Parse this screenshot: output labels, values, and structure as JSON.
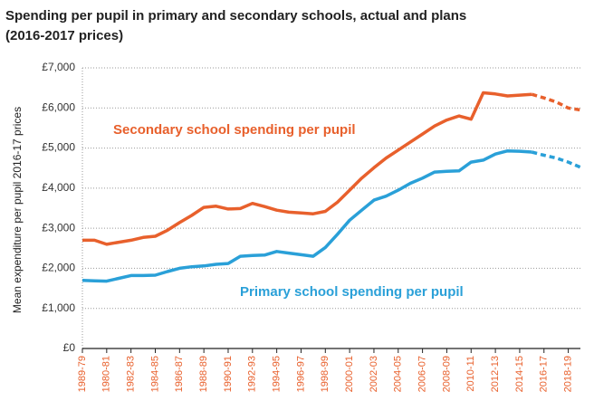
{
  "chart_data": {
    "type": "line",
    "title": "Spending per pupil in primary and secondary schools, actual and plans",
    "subtitle": "(2016-2017 prices)",
    "y_label": "Mean expenditure per pupil 2016-17 prices",
    "categories": [
      "1989-79",
      null,
      "1980-81",
      null,
      "1982-83",
      null,
      "1984-85",
      null,
      "1986-87",
      null,
      "1988-89",
      null,
      "1990-91",
      null,
      "1992-93",
      null,
      "1994-95",
      null,
      "1996-97",
      null,
      "1998-99",
      null,
      "2000-01",
      null,
      "2002-03",
      null,
      "2004-05",
      null,
      "2006-07",
      null,
      "2008-09",
      null,
      "2010-11",
      null,
      "2012-13",
      null,
      "2014-15",
      null,
      "2016-17",
      null,
      "2018-19",
      null
    ],
    "series": [
      {
        "name": "Secondary school spending per pupil",
        "color": "#e8602c",
        "values": [
          2700,
          2700,
          2600,
          2650,
          2700,
          2770,
          2800,
          2950,
          3140,
          3320,
          3520,
          3550,
          3480,
          3490,
          3620,
          3540,
          3450,
          3400,
          3380,
          3360,
          3420,
          3650,
          3950,
          4250,
          4510,
          4750,
          4950,
          5150,
          5350,
          5550,
          5700,
          5800,
          5720,
          6380,
          6350,
          6300,
          6320,
          6340,
          null,
          null,
          null,
          null
        ],
        "plan_values": [
          null,
          null,
          null,
          null,
          null,
          null,
          null,
          null,
          null,
          null,
          null,
          null,
          null,
          null,
          null,
          null,
          null,
          null,
          null,
          null,
          null,
          null,
          null,
          null,
          null,
          null,
          null,
          null,
          null,
          null,
          null,
          null,
          null,
          null,
          null,
          null,
          null,
          6340,
          6250,
          6150,
          6000,
          5950
        ]
      },
      {
        "name": "Primary school spending per pupil",
        "color": "#2aa0d8",
        "values": [
          1700,
          1690,
          1680,
          1750,
          1820,
          1820,
          1830,
          1920,
          2000,
          2040,
          2060,
          2100,
          2120,
          2300,
          2320,
          2330,
          2420,
          2380,
          2340,
          2300,
          2520,
          2850,
          3200,
          3450,
          3700,
          3800,
          3950,
          4120,
          4250,
          4400,
          4420,
          4430,
          4650,
          4700,
          4850,
          4930,
          4920,
          4900,
          null,
          null,
          null,
          null
        ],
        "plan_values": [
          null,
          null,
          null,
          null,
          null,
          null,
          null,
          null,
          null,
          null,
          null,
          null,
          null,
          null,
          null,
          null,
          null,
          null,
          null,
          null,
          null,
          null,
          null,
          null,
          null,
          null,
          null,
          null,
          null,
          null,
          null,
          null,
          null,
          null,
          null,
          null,
          null,
          4900,
          4820,
          4750,
          4650,
          4520
        ]
      }
    ],
    "ylim": [
      0,
      7000
    ],
    "yticks": [
      {
        "value": 0,
        "label": "£0"
      },
      {
        "value": 1000,
        "label": "£1,000"
      },
      {
        "value": 2000,
        "label": "£2,000"
      },
      {
        "value": 3000,
        "label": "£3,000"
      },
      {
        "value": 4000,
        "label": "£4,000"
      },
      {
        "value": 5000,
        "label": "£5,000"
      },
      {
        "value": 6000,
        "label": "£6,000"
      },
      {
        "value": 7000,
        "label": "£7,000"
      }
    ],
    "grid": true
  }
}
